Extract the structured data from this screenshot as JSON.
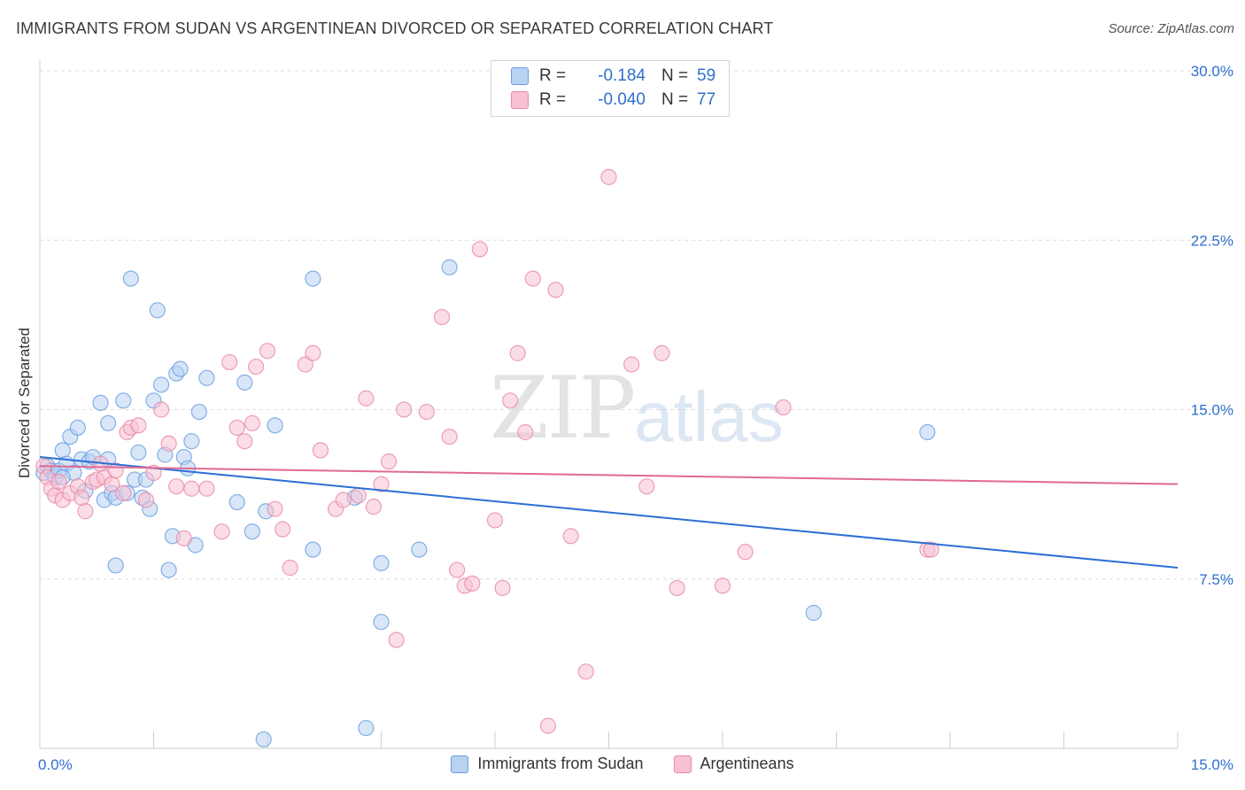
{
  "title": "IMMIGRANTS FROM SUDAN VS ARGENTINEAN DIVORCED OR SEPARATED CORRELATION CHART",
  "source": "Source: ZipAtlas.com",
  "watermark": {
    "zip": "ZIP",
    "atlas": "atlas"
  },
  "colors": {
    "blue": "#6a9de0",
    "blue_fill": "#b8d2f2",
    "pink": "#e888a8",
    "pink_fill": "#f7c1d3",
    "blue_line": "#2b6fd6",
    "pink_line": "#e06a94",
    "tick_blue": "#2f6fce"
  },
  "stats": {
    "rows": [
      {
        "r_label": "R =",
        "r_value": "-0.184",
        "n_label": "N =",
        "n_value": "59"
      },
      {
        "r_label": "R =",
        "r_value": "-0.040",
        "n_label": "N =",
        "n_value": "77"
      }
    ]
  },
  "legend": {
    "items": [
      "Immigrants from Sudan",
      "Argentineans"
    ]
  },
  "chart_data": {
    "type": "scatter",
    "ylabel": "Divorced or Separated",
    "xlim": [
      0,
      15
    ],
    "ylim": [
      0,
      32
    ],
    "x_ticks": [
      "0.0%",
      "15.0%"
    ],
    "y_ticks": [
      {
        "value": 7.5,
        "label": "7.5%"
      },
      {
        "value": 15.0,
        "label": "15.0%"
      },
      {
        "value": 22.5,
        "label": "22.5%"
      },
      {
        "value": 30.0,
        "label": "30.0%"
      }
    ],
    "grid": true,
    "legend_position": "bottom",
    "series": [
      {
        "name": "Immigrants from Sudan",
        "trend": [
          [
            0.0,
            12.9
          ],
          [
            15.0,
            8.0
          ]
        ],
        "points": [
          [
            0.05,
            12.2
          ],
          [
            0.1,
            12.5
          ],
          [
            0.15,
            12.3
          ],
          [
            0.2,
            12.0
          ],
          [
            0.25,
            12.3
          ],
          [
            0.3,
            13.2
          ],
          [
            0.35,
            12.6
          ],
          [
            0.4,
            13.8
          ],
          [
            0.45,
            12.2
          ],
          [
            0.5,
            14.2
          ],
          [
            0.55,
            12.8
          ],
          [
            0.6,
            11.4
          ],
          [
            0.65,
            12.7
          ],
          [
            0.7,
            12.9
          ],
          [
            0.8,
            15.3
          ],
          [
            0.85,
            11.0
          ],
          [
            0.9,
            14.4
          ],
          [
            0.95,
            11.3
          ],
          [
            1.0,
            11.1
          ],
          [
            1.1,
            15.4
          ],
          [
            1.15,
            11.3
          ],
          [
            1.2,
            20.8
          ],
          [
            1.25,
            11.9
          ],
          [
            1.3,
            13.1
          ],
          [
            1.35,
            11.1
          ],
          [
            1.4,
            11.9
          ],
          [
            1.45,
            10.6
          ],
          [
            1.5,
            15.4
          ],
          [
            1.55,
            19.4
          ],
          [
            1.6,
            16.1
          ],
          [
            1.65,
            13.0
          ],
          [
            1.75,
            9.4
          ],
          [
            1.8,
            16.6
          ],
          [
            1.85,
            16.8
          ],
          [
            1.9,
            12.9
          ],
          [
            1.95,
            12.4
          ],
          [
            2.0,
            13.6
          ],
          [
            2.05,
            9.0
          ],
          [
            2.1,
            14.9
          ],
          [
            2.2,
            16.4
          ],
          [
            0.3,
            12.0
          ],
          [
            0.9,
            12.8
          ],
          [
            1.0,
            8.1
          ],
          [
            1.7,
            7.9
          ],
          [
            2.6,
            10.9
          ],
          [
            2.7,
            16.2
          ],
          [
            2.8,
            9.6
          ],
          [
            2.95,
            0.4
          ],
          [
            2.98,
            10.5
          ],
          [
            3.1,
            14.3
          ],
          [
            3.6,
            8.8
          ],
          [
            3.6,
            20.8
          ],
          [
            4.15,
            11.1
          ],
          [
            4.3,
            0.9
          ],
          [
            4.5,
            8.2
          ],
          [
            4.5,
            5.6
          ],
          [
            5.0,
            8.8
          ],
          [
            5.4,
            21.3
          ],
          [
            10.2,
            6.0
          ],
          [
            11.7,
            14.0
          ]
        ]
      },
      {
        "name": "Argentineans",
        "trend": [
          [
            0.0,
            12.5
          ],
          [
            15.0,
            11.7
          ]
        ],
        "points": [
          [
            0.05,
            12.5
          ],
          [
            0.1,
            12.0
          ],
          [
            0.15,
            11.5
          ],
          [
            0.2,
            11.2
          ],
          [
            0.25,
            11.8
          ],
          [
            0.3,
            11.0
          ],
          [
            0.4,
            11.3
          ],
          [
            0.5,
            11.6
          ],
          [
            0.55,
            11.1
          ],
          [
            0.6,
            10.5
          ],
          [
            0.7,
            11.8
          ],
          [
            0.75,
            11.9
          ],
          [
            0.8,
            12.6
          ],
          [
            0.85,
            12.0
          ],
          [
            0.95,
            11.7
          ],
          [
            1.0,
            12.3
          ],
          [
            1.1,
            11.3
          ],
          [
            1.15,
            14.0
          ],
          [
            1.2,
            14.2
          ],
          [
            1.3,
            14.3
          ],
          [
            1.4,
            11.0
          ],
          [
            1.5,
            12.2
          ],
          [
            1.6,
            15.0
          ],
          [
            1.7,
            13.5
          ],
          [
            1.8,
            11.6
          ],
          [
            1.9,
            9.3
          ],
          [
            2.0,
            11.5
          ],
          [
            2.2,
            11.5
          ],
          [
            2.4,
            9.6
          ],
          [
            2.5,
            17.1
          ],
          [
            2.6,
            14.2
          ],
          [
            2.7,
            13.6
          ],
          [
            2.8,
            14.4
          ],
          [
            2.85,
            16.9
          ],
          [
            3.0,
            17.6
          ],
          [
            3.1,
            10.6
          ],
          [
            3.2,
            9.7
          ],
          [
            3.3,
            8.0
          ],
          [
            3.5,
            17.0
          ],
          [
            3.6,
            17.5
          ],
          [
            3.7,
            13.2
          ],
          [
            3.9,
            10.6
          ],
          [
            4.0,
            11.0
          ],
          [
            4.2,
            11.2
          ],
          [
            4.3,
            15.5
          ],
          [
            4.4,
            10.7
          ],
          [
            4.5,
            11.7
          ],
          [
            4.6,
            12.7
          ],
          [
            4.7,
            4.8
          ],
          [
            4.8,
            15.0
          ],
          [
            5.1,
            14.9
          ],
          [
            5.3,
            19.1
          ],
          [
            5.4,
            13.8
          ],
          [
            5.5,
            7.9
          ],
          [
            5.6,
            7.2
          ],
          [
            5.7,
            7.3
          ],
          [
            5.8,
            22.1
          ],
          [
            6.0,
            10.1
          ],
          [
            6.1,
            7.1
          ],
          [
            6.2,
            15.4
          ],
          [
            6.3,
            17.5
          ],
          [
            6.4,
            14.0
          ],
          [
            6.5,
            20.8
          ],
          [
            6.7,
            1.0
          ],
          [
            6.8,
            20.3
          ],
          [
            7.0,
            9.4
          ],
          [
            7.2,
            3.4
          ],
          [
            7.5,
            25.3
          ],
          [
            7.8,
            17.0
          ],
          [
            8.0,
            11.6
          ],
          [
            8.2,
            17.5
          ],
          [
            8.4,
            7.1
          ],
          [
            9.0,
            7.2
          ],
          [
            9.3,
            8.7
          ],
          [
            9.8,
            15.1
          ],
          [
            11.7,
            8.8
          ],
          [
            11.75,
            8.8
          ]
        ]
      }
    ]
  }
}
